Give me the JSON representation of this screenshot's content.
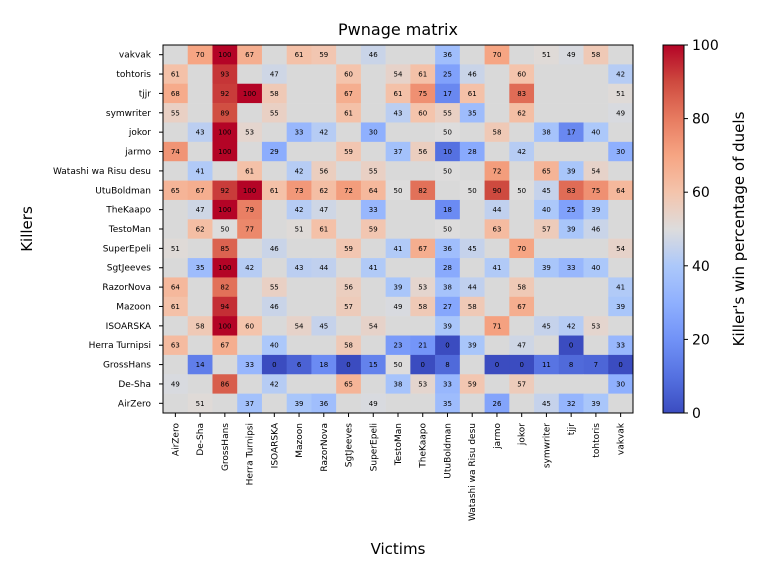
{
  "chart_data": {
    "type": "heatmap",
    "title": "Pwnage matrix",
    "xlabel": "Victims",
    "ylabel": "Killers",
    "colorbar_label": "Killer's win percentage of duels",
    "colorbar_ticks": [
      "0",
      "20",
      "40",
      "60",
      "80",
      "100"
    ],
    "value_range": [
      0,
      100
    ],
    "colormap": "coolwarm",
    "missing_color": "#d9d9d9",
    "x_categories": [
      "AirZero",
      "De-Sha",
      "GrossHans",
      "Herra Turnipsi",
      "ISOARSKA",
      "Mazoon",
      "RazorNova",
      "SgtJeeves",
      "SuperEpeli",
      "TestoMan",
      "TheKaapo",
      "UtuBoldman",
      "Watashi wa Risu desu",
      "jarmo",
      "jokor",
      "symwriter",
      "tjjr",
      "tohtoris",
      "vakvak"
    ],
    "y_categories": [
      "vakvak",
      "tohtoris",
      "tjjr",
      "symwriter",
      "jokor",
      "jarmo",
      "Watashi wa Risu desu",
      "UtuBoldman",
      "TheKaapo",
      "TestoMan",
      "SuperEpeli",
      "SgtJeeves",
      "RazorNova",
      "Mazoon",
      "ISOARSKA",
      "Herra Turnipsi",
      "GrossHans",
      "De-Sha",
      "AirZero"
    ],
    "values": [
      [
        null,
        70,
        100,
        67,
        null,
        61,
        59,
        null,
        46,
        null,
        null,
        36,
        null,
        70,
        null,
        51,
        49,
        58,
        null
      ],
      [
        61,
        null,
        93,
        null,
        47,
        null,
        null,
        60,
        null,
        54,
        61,
        25,
        46,
        null,
        60,
        null,
        null,
        null,
        42
      ],
      [
        68,
        null,
        92,
        100,
        58,
        null,
        null,
        67,
        null,
        61,
        75,
        17,
        61,
        null,
        83,
        null,
        null,
        null,
        51
      ],
      [
        55,
        null,
        89,
        null,
        55,
        null,
        null,
        61,
        null,
        43,
        60,
        55,
        35,
        null,
        62,
        null,
        null,
        null,
        49
      ],
      [
        null,
        43,
        100,
        53,
        null,
        33,
        42,
        null,
        30,
        null,
        null,
        50,
        null,
        58,
        null,
        38,
        17,
        40,
        null
      ],
      [
        74,
        null,
        100,
        null,
        29,
        null,
        null,
        59,
        null,
        37,
        56,
        10,
        28,
        null,
        42,
        null,
        null,
        null,
        30
      ],
      [
        null,
        41,
        null,
        61,
        null,
        42,
        56,
        null,
        55,
        null,
        null,
        50,
        null,
        72,
        null,
        65,
        39,
        54,
        null
      ],
      [
        65,
        67,
        92,
        100,
        61,
        73,
        62,
        72,
        64,
        50,
        82,
        null,
        50,
        90,
        50,
        45,
        83,
        75,
        64
      ],
      [
        null,
        47,
        100,
        79,
        null,
        42,
        47,
        null,
        33,
        null,
        null,
        18,
        null,
        44,
        null,
        40,
        25,
        39,
        null
      ],
      [
        null,
        62,
        50,
        77,
        null,
        51,
        61,
        null,
        59,
        null,
        null,
        50,
        null,
        63,
        null,
        57,
        39,
        46,
        null
      ],
      [
        51,
        null,
        85,
        null,
        46,
        null,
        null,
        59,
        null,
        41,
        67,
        36,
        45,
        null,
        70,
        null,
        null,
        null,
        54
      ],
      [
        null,
        35,
        100,
        42,
        null,
        43,
        44,
        null,
        41,
        null,
        null,
        28,
        null,
        41,
        null,
        39,
        33,
        40,
        null
      ],
      [
        64,
        null,
        82,
        null,
        55,
        null,
        null,
        56,
        null,
        39,
        53,
        38,
        44,
        null,
        58,
        null,
        null,
        null,
        41
      ],
      [
        61,
        null,
        94,
        null,
        46,
        null,
        null,
        57,
        null,
        49,
        58,
        27,
        58,
        null,
        67,
        null,
        null,
        null,
        39
      ],
      [
        null,
        58,
        100,
        60,
        null,
        54,
        45,
        null,
        54,
        null,
        null,
        39,
        null,
        71,
        null,
        45,
        42,
        53,
        null
      ],
      [
        63,
        null,
        67,
        null,
        40,
        null,
        null,
        58,
        null,
        23,
        21,
        0,
        39,
        null,
        47,
        null,
        0,
        null,
        33
      ],
      [
        null,
        14,
        null,
        33,
        0,
        6,
        18,
        0,
        15,
        50,
        0,
        8,
        null,
        0,
        0,
        11,
        8,
        7,
        0
      ],
      [
        49,
        null,
        86,
        null,
        42,
        null,
        null,
        65,
        null,
        38,
        53,
        33,
        59,
        null,
        57,
        null,
        null,
        null,
        30
      ],
      [
        null,
        51,
        null,
        37,
        null,
        39,
        36,
        null,
        49,
        null,
        null,
        35,
        null,
        26,
        null,
        45,
        32,
        39,
        null
      ]
    ]
  }
}
